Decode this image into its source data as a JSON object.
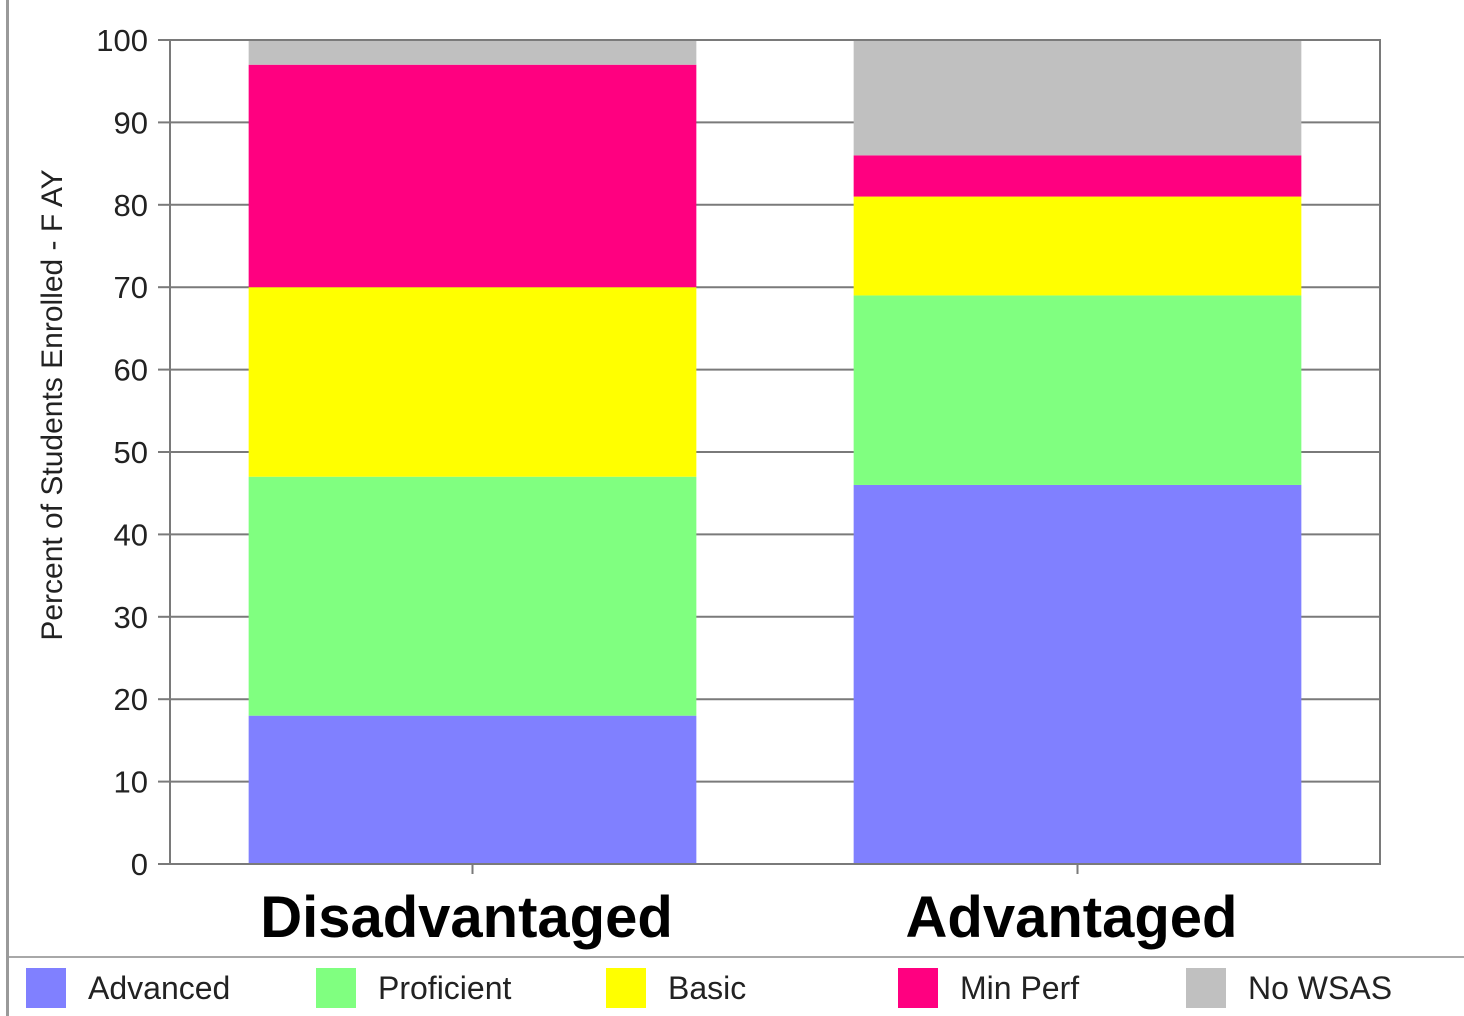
{
  "chart_data": {
    "type": "bar",
    "stacked": true,
    "title": "",
    "xlabel": "",
    "ylabel": "Percent of Students Enrolled - F AY",
    "ylim": [
      0,
      100
    ],
    "yticks": [
      0,
      10,
      20,
      30,
      40,
      50,
      60,
      70,
      80,
      90,
      100
    ],
    "ytick_labels": [
      "0",
      "10",
      "20",
      "30",
      "40",
      "50",
      "60",
      "70",
      "80",
      "90",
      "100"
    ],
    "grid": "horizontal",
    "legend_position": "bottom",
    "categories": [
      "Disadvantaged",
      "Advantaged"
    ],
    "series": [
      {
        "name": "Advanced",
        "color": "#8080ff",
        "values": [
          18,
          46
        ]
      },
      {
        "name": "Proficient",
        "color": "#80ff80",
        "values": [
          29,
          23
        ]
      },
      {
        "name": "Basic",
        "color": "#ffff00",
        "values": [
          23,
          12
        ]
      },
      {
        "name": "Min Perf",
        "color": "#ff0080",
        "values": [
          27,
          5
        ]
      },
      {
        "name": "No WSAS",
        "color": "#c0c0c0",
        "values": [
          3,
          14
        ]
      }
    ]
  }
}
